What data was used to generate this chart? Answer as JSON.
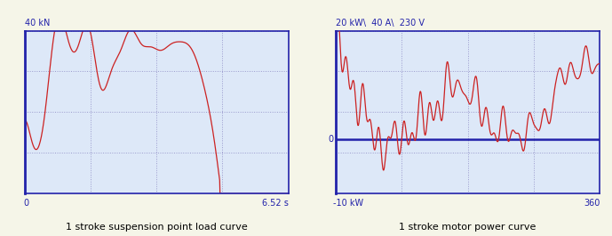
{
  "chart1": {
    "title": "1 stroke suspension point load curve",
    "ylabel": "40 kN",
    "xlabel": "6.52 s",
    "x0_label": "0",
    "ylim": [
      0,
      40
    ],
    "xlim": [
      0,
      6.52
    ],
    "grid_color": "#9999cc",
    "line_color": "#cc2222",
    "bg_color": "#dde8f8",
    "axis_color": "#2222aa",
    "fig_bg": "#f5f5e8"
  },
  "chart2": {
    "title": "1 stroke motor power curve",
    "ylabel_top": "20 kW\\  40 A\\  230 V",
    "ylabel_bot": "-10 kW",
    "xlabel": "360",
    "ylim": [
      -10,
      20
    ],
    "xlim": [
      0,
      360
    ],
    "grid_color": "#9999cc",
    "line_color": "#cc2222",
    "bg_color": "#dde8f8",
    "axis_color": "#2222aa"
  }
}
